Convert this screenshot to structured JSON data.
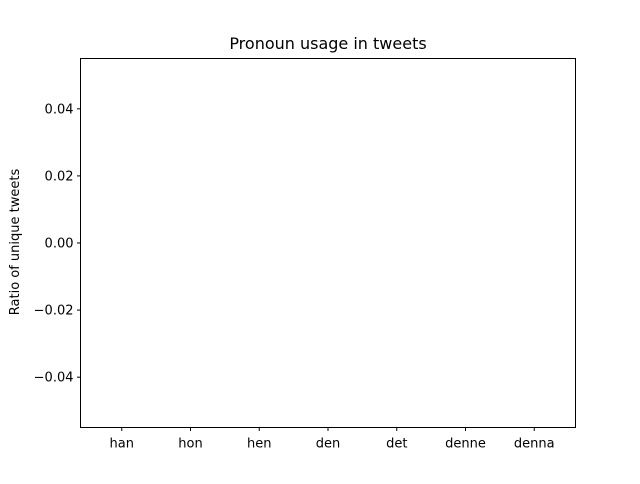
{
  "chart_data": {
    "type": "bar",
    "title": "Pronoun usage in tweets",
    "xlabel": "",
    "ylabel": "Ratio of unique tweets",
    "categories": [
      "han",
      "hon",
      "hen",
      "den",
      "det",
      "denne",
      "denna"
    ],
    "values": [
      0,
      0,
      0,
      0,
      0,
      0,
      0
    ],
    "ylim": [
      -0.055,
      0.055
    ],
    "yticks": [
      -0.04,
      -0.02,
      0.0,
      0.02,
      0.04
    ],
    "ytick_labels": [
      "−0.04",
      "−0.02",
      "0.00",
      "0.02",
      "0.04"
    ],
    "grid": false,
    "legend": "none",
    "colors": {
      "bar": "#1f77b4",
      "axes": "#000000",
      "background": "#ffffff"
    }
  }
}
